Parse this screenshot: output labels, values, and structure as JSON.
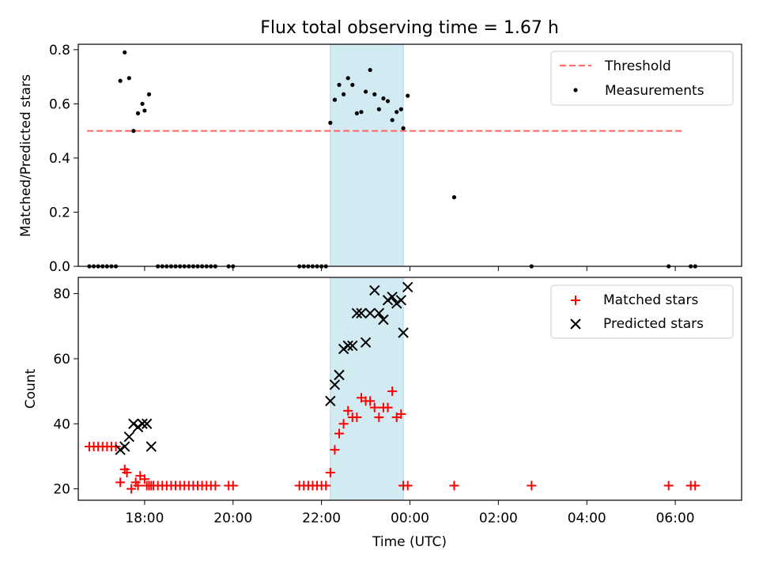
{
  "figure": {
    "title": "Flux total observing time = 1.67 h"
  },
  "colors": {
    "shade": "#add8e6",
    "threshold": "#ff6f6f",
    "measure": "#000000",
    "matched": "#ff0000",
    "predicted": "#000000"
  },
  "chart_data": [
    {
      "type": "scatter",
      "xlabel": "",
      "ylabel": "Matched/Predicted stars",
      "ylim": [
        0,
        0.82
      ],
      "yticks": [
        0.0,
        0.2,
        0.4,
        0.6,
        0.8
      ],
      "ytick_labels": [
        "0.0",
        "0.2",
        "0.4",
        "0.6",
        "0.8"
      ],
      "xlim_hours": [
        16.5,
        31.5
      ],
      "shaded_interval_hours": [
        22.2,
        23.85
      ],
      "legend": {
        "placement": "top-right",
        "entries": [
          "Threshold",
          "Measurements"
        ]
      },
      "threshold": {
        "name": "Threshold",
        "y": 0.5,
        "x_hours": [
          16.7,
          30.2
        ]
      },
      "series": [
        {
          "name": "Measurements",
          "marker": "dot",
          "x_hours": [
            16.75,
            16.85,
            16.95,
            17.05,
            17.15,
            17.25,
            17.35,
            17.45,
            17.55,
            17.65,
            17.75,
            17.85,
            17.95,
            18.0,
            18.1,
            18.3,
            18.4,
            18.5,
            18.6,
            18.7,
            18.8,
            18.9,
            19.0,
            19.1,
            19.2,
            19.3,
            19.4,
            19.5,
            19.6,
            19.9,
            20.0,
            21.5,
            21.6,
            21.7,
            21.8,
            21.9,
            22.0,
            22.1,
            22.2,
            22.3,
            22.4,
            22.5,
            22.6,
            22.7,
            22.8,
            22.9,
            23.0,
            23.1,
            23.2,
            23.3,
            23.4,
            23.5,
            23.6,
            23.7,
            23.8,
            23.85,
            23.95,
            25.0,
            26.75,
            29.85,
            30.35,
            30.45
          ],
          "y": [
            0,
            0,
            0,
            0,
            0,
            0,
            0,
            0.685,
            0.79,
            0.695,
            0.5,
            0.565,
            0.6,
            0.575,
            0.635,
            0,
            0,
            0,
            0,
            0,
            0,
            0,
            0,
            0,
            0,
            0,
            0,
            0,
            0,
            0,
            0,
            0,
            0,
            0,
            0,
            0,
            0,
            0,
            0.53,
            0.615,
            0.67,
            0.635,
            0.695,
            0.67,
            0.565,
            0.57,
            0.645,
            0.725,
            0.635,
            0.58,
            0.62,
            0.61,
            0.54,
            0.57,
            0.58,
            0.51,
            0.63,
            0.255,
            0,
            0,
            0,
            0
          ]
        }
      ]
    },
    {
      "type": "scatter",
      "xlabel": "Time (UTC)",
      "ylabel": "Count",
      "ylim": [
        16.5,
        85
      ],
      "yticks": [
        20,
        40,
        60,
        80
      ],
      "ytick_labels": [
        "20",
        "40",
        "60",
        "80"
      ],
      "xlim_hours": [
        16.5,
        31.5
      ],
      "xticks_hours": [
        18,
        20,
        22,
        24,
        26,
        28,
        30
      ],
      "xtick_labels": [
        "18:00",
        "20:00",
        "22:00",
        "00:00",
        "02:00",
        "04:00",
        "06:00"
      ],
      "shaded_interval_hours": [
        22.2,
        23.85
      ],
      "legend": {
        "placement": "top-right",
        "entries": [
          "Matched stars",
          "Predicted stars"
        ]
      },
      "series": [
        {
          "name": "Matched stars",
          "marker": "plus",
          "x_hours": [
            16.75,
            16.85,
            16.95,
            17.05,
            17.15,
            17.25,
            17.35,
            17.45,
            17.55,
            17.6,
            17.7,
            17.8,
            17.85,
            17.9,
            18.0,
            18.05,
            18.1,
            18.15,
            18.2,
            18.3,
            18.4,
            18.5,
            18.6,
            18.7,
            18.8,
            18.9,
            19.0,
            19.1,
            19.2,
            19.3,
            19.4,
            19.5,
            19.6,
            19.9,
            20.0,
            21.5,
            21.6,
            21.7,
            21.8,
            21.9,
            22.0,
            22.1,
            22.2,
            22.3,
            22.4,
            22.5,
            22.6,
            22.7,
            22.8,
            22.9,
            23.0,
            23.1,
            23.2,
            23.3,
            23.4,
            23.5,
            23.6,
            23.7,
            23.8,
            23.85,
            23.95,
            25.0,
            26.75,
            29.85,
            30.35,
            30.45
          ],
          "y": [
            33,
            33,
            33,
            33,
            33,
            33,
            33,
            22,
            26,
            25,
            20,
            22,
            21,
            24,
            23,
            21,
            21,
            21,
            21,
            21,
            21,
            21,
            21,
            21,
            21,
            21,
            21,
            21,
            21,
            21,
            21,
            21,
            21,
            21,
            21,
            21,
            21,
            21,
            21,
            21,
            21,
            21,
            25,
            32,
            37,
            40,
            44,
            42,
            42,
            48,
            47,
            47,
            45,
            42,
            45,
            45,
            50,
            42,
            43,
            21,
            21,
            21,
            21,
            21,
            21,
            21
          ],
          "note": ""
        },
        {
          "name": "Predicted stars",
          "marker": "x",
          "x_hours": [
            17.45,
            17.55,
            17.65,
            17.75,
            17.85,
            17.95,
            18.05,
            18.15,
            22.2,
            22.3,
            22.4,
            22.5,
            22.6,
            22.7,
            22.8,
            22.9,
            23.0,
            23.1,
            23.2,
            23.3,
            23.4,
            23.5,
            23.6,
            23.7,
            23.8,
            23.85,
            23.95
          ],
          "y": [
            32,
            33,
            36,
            40,
            39,
            40,
            40,
            33,
            47,
            52,
            55,
            63,
            64,
            64,
            74,
            74,
            65,
            74,
            81,
            74,
            72,
            78,
            79,
            77,
            78,
            68,
            82
          ]
        }
      ]
    }
  ]
}
